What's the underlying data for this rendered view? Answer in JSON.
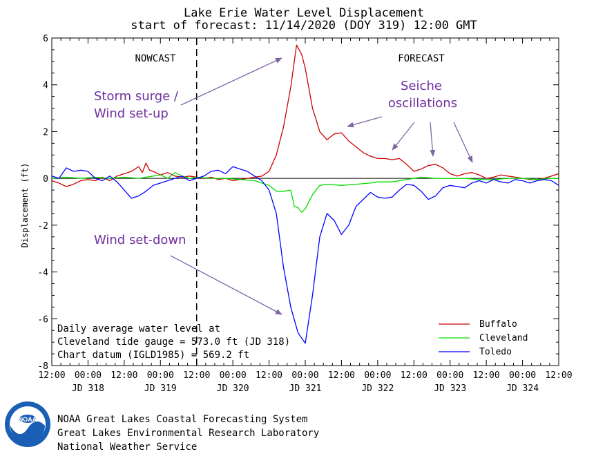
{
  "chart_data": {
    "type": "line",
    "title": "Lake Erie Water Level Displacement",
    "subtitle": "start of forecast: 11/14/2020 (DOY 319) 12:00 GMT",
    "xlabel": "",
    "ylabel": "Displacement (ft)",
    "ylim": [
      -8,
      6
    ],
    "yticks": [
      -8,
      -6,
      -4,
      -2,
      0,
      2,
      4,
      6
    ],
    "xlim": [
      317.5,
      324.5
    ],
    "x_time_ticks": [
      "12:00",
      "00:00",
      "12:00",
      "00:00",
      "12:00",
      "00:00",
      "12:00",
      "00:00",
      "12:00",
      "00:00",
      "12:00",
      "00:00",
      "12:00",
      "00:00",
      "12:00"
    ],
    "x_day_labels": [
      "JD 318",
      "JD 319",
      "JD 320",
      "JD 321",
      "JD 322",
      "JD 323",
      "JD 324"
    ],
    "nowcast_label": "NOWCAST",
    "forecast_label": "FORECAST",
    "forecast_start": 319.5,
    "legend_position": "bottom-right",
    "series": [
      {
        "name": "Buffalo",
        "color": "#cc0000",
        "points": [
          [
            317.5,
            -0.1
          ],
          [
            317.6,
            -0.2
          ],
          [
            317.7,
            -0.35
          ],
          [
            317.8,
            -0.25
          ],
          [
            317.9,
            -0.1
          ],
          [
            318.0,
            -0.05
          ],
          [
            318.1,
            -0.1
          ],
          [
            318.2,
            0.05
          ],
          [
            318.3,
            -0.1
          ],
          [
            318.4,
            0.1
          ],
          [
            318.5,
            0.2
          ],
          [
            318.6,
            0.3
          ],
          [
            318.7,
            0.5
          ],
          [
            318.75,
            0.25
          ],
          [
            318.8,
            0.65
          ],
          [
            318.85,
            0.35
          ],
          [
            318.9,
            0.3
          ],
          [
            319.0,
            0.15
          ],
          [
            319.1,
            0.25
          ],
          [
            319.2,
            0.1
          ],
          [
            319.3,
            0.05
          ],
          [
            319.4,
            0.1
          ],
          [
            319.5,
            0.05
          ],
          [
            319.6,
            0.0
          ],
          [
            319.7,
            0.05
          ],
          [
            319.8,
            -0.05
          ],
          [
            319.9,
            0.0
          ],
          [
            320.0,
            -0.1
          ],
          [
            320.1,
            -0.05
          ],
          [
            320.2,
            0.0
          ],
          [
            320.3,
            0.05
          ],
          [
            320.4,
            0.1
          ],
          [
            320.5,
            0.3
          ],
          [
            320.6,
            1.0
          ],
          [
            320.7,
            2.2
          ],
          [
            320.8,
            3.9
          ],
          [
            320.88,
            5.7
          ],
          [
            320.95,
            5.3
          ],
          [
            321.0,
            4.7
          ],
          [
            321.1,
            3.0
          ],
          [
            321.2,
            2.0
          ],
          [
            321.3,
            1.65
          ],
          [
            321.4,
            1.9
          ],
          [
            321.5,
            1.95
          ],
          [
            321.6,
            1.6
          ],
          [
            321.7,
            1.35
          ],
          [
            321.8,
            1.1
          ],
          [
            321.9,
            0.95
          ],
          [
            322.0,
            0.85
          ],
          [
            322.1,
            0.85
          ],
          [
            322.2,
            0.8
          ],
          [
            322.3,
            0.85
          ],
          [
            322.4,
            0.6
          ],
          [
            322.5,
            0.3
          ],
          [
            322.6,
            0.4
          ],
          [
            322.7,
            0.55
          ],
          [
            322.8,
            0.6
          ],
          [
            322.9,
            0.45
          ],
          [
            323.0,
            0.2
          ],
          [
            323.1,
            0.1
          ],
          [
            323.2,
            0.2
          ],
          [
            323.3,
            0.25
          ],
          [
            323.4,
            0.15
          ],
          [
            323.5,
            0.0
          ],
          [
            323.6,
            0.05
          ],
          [
            323.7,
            0.15
          ],
          [
            323.8,
            0.1
          ],
          [
            323.9,
            0.05
          ],
          [
            324.0,
            0.0
          ],
          [
            324.1,
            -0.05
          ],
          [
            324.2,
            -0.05
          ],
          [
            324.3,
            0.0
          ],
          [
            324.4,
            0.1
          ],
          [
            324.5,
            0.2
          ]
        ]
      },
      {
        "name": "Cleveland",
        "color": "#00dd00",
        "points": [
          [
            317.5,
            0.0
          ],
          [
            317.7,
            0.05
          ],
          [
            317.9,
            0.0
          ],
          [
            318.1,
            0.05
          ],
          [
            318.3,
            0.0
          ],
          [
            318.5,
            0.05
          ],
          [
            318.7,
            0.0
          ],
          [
            318.9,
            0.1
          ],
          [
            319.0,
            0.15
          ],
          [
            319.1,
            0.0
          ],
          [
            319.2,
            0.25
          ],
          [
            319.3,
            0.1
          ],
          [
            319.4,
            0.0
          ],
          [
            319.5,
            0.05
          ],
          [
            319.7,
            0.0
          ],
          [
            319.9,
            0.0
          ],
          [
            320.1,
            -0.05
          ],
          [
            320.3,
            -0.1
          ],
          [
            320.5,
            -0.3
          ],
          [
            320.6,
            -0.55
          ],
          [
            320.7,
            -0.55
          ],
          [
            320.8,
            -0.5
          ],
          [
            320.85,
            -1.2
          ],
          [
            320.9,
            -1.25
          ],
          [
            320.95,
            -1.45
          ],
          [
            321.0,
            -1.3
          ],
          [
            321.1,
            -0.7
          ],
          [
            321.2,
            -0.3
          ],
          [
            321.3,
            -0.25
          ],
          [
            321.5,
            -0.3
          ],
          [
            321.7,
            -0.25
          ],
          [
            321.9,
            -0.2
          ],
          [
            322.0,
            -0.15
          ],
          [
            322.2,
            -0.15
          ],
          [
            322.4,
            -0.05
          ],
          [
            322.6,
            0.05
          ],
          [
            322.8,
            0.0
          ],
          [
            323.0,
            0.0
          ],
          [
            323.2,
            0.0
          ],
          [
            323.4,
            -0.05
          ],
          [
            323.6,
            -0.05
          ],
          [
            323.8,
            0.0
          ],
          [
            324.0,
            0.0
          ],
          [
            324.2,
            -0.05
          ],
          [
            324.4,
            0.0
          ],
          [
            324.5,
            0.0
          ]
        ]
      },
      {
        "name": "Toledo",
        "color": "#0000ff",
        "points": [
          [
            317.5,
            0.1
          ],
          [
            317.6,
            0.0
          ],
          [
            317.7,
            0.45
          ],
          [
            317.8,
            0.3
          ],
          [
            317.9,
            0.35
          ],
          [
            318.0,
            0.3
          ],
          [
            318.1,
            0.0
          ],
          [
            318.2,
            -0.1
          ],
          [
            318.3,
            0.1
          ],
          [
            318.4,
            -0.15
          ],
          [
            318.5,
            -0.5
          ],
          [
            318.6,
            -0.85
          ],
          [
            318.7,
            -0.75
          ],
          [
            318.8,
            -0.55
          ],
          [
            318.9,
            -0.3
          ],
          [
            319.0,
            -0.2
          ],
          [
            319.1,
            -0.1
          ],
          [
            319.2,
            0.0
          ],
          [
            319.3,
            0.1
          ],
          [
            319.4,
            -0.1
          ],
          [
            319.5,
            0.0
          ],
          [
            319.6,
            0.1
          ],
          [
            319.7,
            0.3
          ],
          [
            319.8,
            0.35
          ],
          [
            319.9,
            0.2
          ],
          [
            320.0,
            0.5
          ],
          [
            320.1,
            0.4
          ],
          [
            320.2,
            0.3
          ],
          [
            320.3,
            0.1
          ],
          [
            320.4,
            -0.1
          ],
          [
            320.5,
            -0.5
          ],
          [
            320.6,
            -1.5
          ],
          [
            320.7,
            -3.8
          ],
          [
            320.8,
            -5.5
          ],
          [
            320.9,
            -6.6
          ],
          [
            321.0,
            -7.05
          ],
          [
            321.1,
            -5.0
          ],
          [
            321.2,
            -2.5
          ],
          [
            321.3,
            -1.5
          ],
          [
            321.4,
            -1.8
          ],
          [
            321.5,
            -2.4
          ],
          [
            321.6,
            -2.0
          ],
          [
            321.7,
            -1.2
          ],
          [
            321.8,
            -0.9
          ],
          [
            321.9,
            -0.6
          ],
          [
            322.0,
            -0.8
          ],
          [
            322.1,
            -0.85
          ],
          [
            322.2,
            -0.8
          ],
          [
            322.3,
            -0.5
          ],
          [
            322.4,
            -0.25
          ],
          [
            322.5,
            -0.3
          ],
          [
            322.6,
            -0.55
          ],
          [
            322.7,
            -0.9
          ],
          [
            322.8,
            -0.75
          ],
          [
            322.9,
            -0.4
          ],
          [
            323.0,
            -0.3
          ],
          [
            323.1,
            -0.35
          ],
          [
            323.2,
            -0.4
          ],
          [
            323.3,
            -0.2
          ],
          [
            323.4,
            -0.1
          ],
          [
            323.5,
            -0.2
          ],
          [
            323.6,
            -0.05
          ],
          [
            323.7,
            -0.15
          ],
          [
            323.8,
            -0.2
          ],
          [
            323.9,
            -0.05
          ],
          [
            324.0,
            -0.1
          ],
          [
            324.1,
            -0.2
          ],
          [
            324.2,
            -0.1
          ],
          [
            324.3,
            -0.05
          ],
          [
            324.4,
            -0.1
          ],
          [
            324.5,
            -0.3
          ]
        ]
      }
    ],
    "info_lines": [
      "Daily average water level at",
      "Cleveland tide gauge = 573.0 ft (JD 318)",
      "Chart datum (IGLD1985) = 569.2 ft"
    ],
    "annotations": {
      "storm_surge": [
        "Storm surge /",
        "Wind set-up"
      ],
      "seiche": [
        "Seiche",
        "oscillations"
      ],
      "set_down": [
        "Wind set-down"
      ]
    }
  },
  "footer": {
    "logo_text": "NOAA",
    "credits": [
      "NOAA Great Lakes Coastal Forecasting System",
      "Great Lakes Environmental Research Laboratory",
      "National Weather Service"
    ]
  },
  "colors": {
    "annotation": "#7030a0",
    "arrow": "#8064a2"
  }
}
